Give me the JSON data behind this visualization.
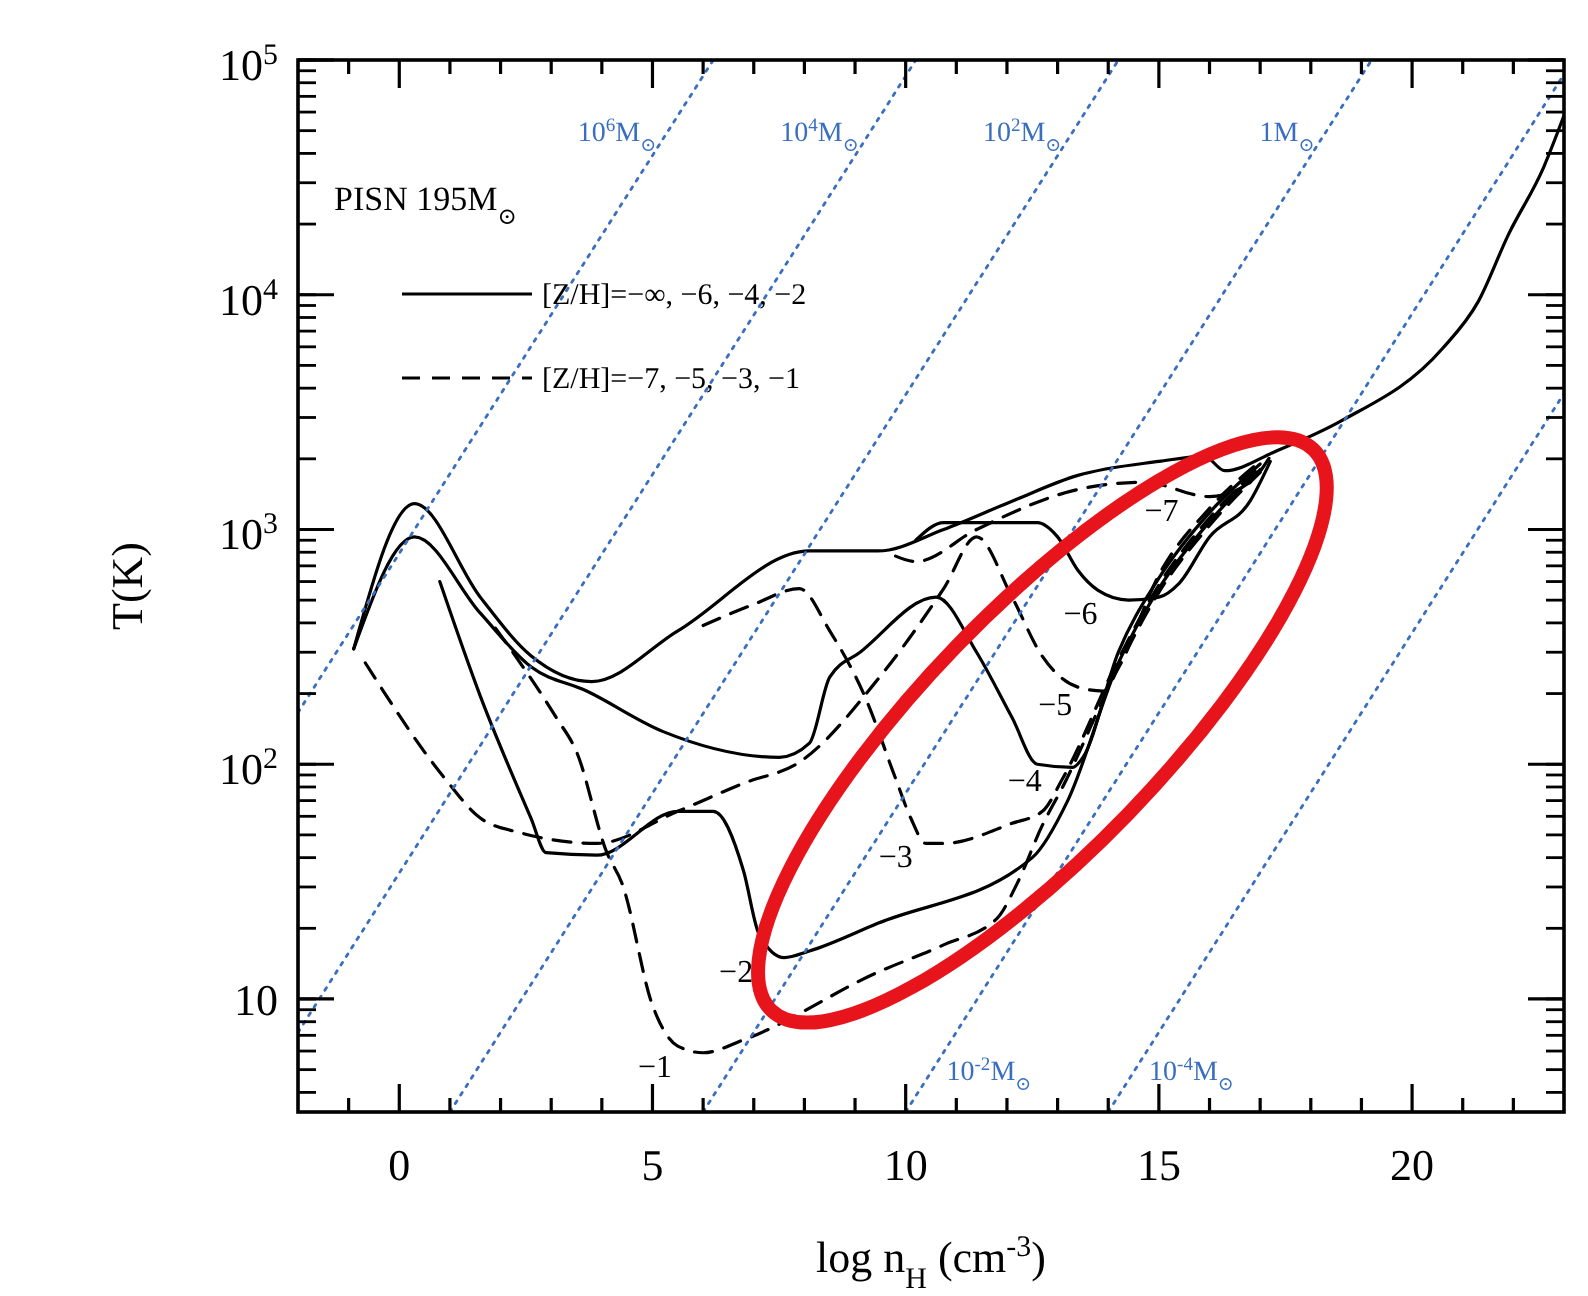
{
  "chart_data": {
    "type": "line",
    "xlabel": "log n$_{H}$ (cm$^{-3}$)",
    "ylabel": "T(K)",
    "log": "y",
    "legend": "top left",
    "legend_title": "PISN 195M$_{⊙}$",
    "xlim": [
      -2,
      23
    ],
    "ylim": [
      3.3,
      100000
    ],
    "xticks": [
      {
        "value": -1,
        "label": null
      },
      0,
      {
        "value": 1,
        "label": null
      },
      {
        "value": 2,
        "label": null
      },
      {
        "value": 3,
        "label": null
      },
      {
        "value": 4,
        "label": null
      },
      5,
      {
        "value": 6,
        "label": null
      },
      {
        "value": 7,
        "label": null
      },
      {
        "value": 8,
        "label": null
      },
      {
        "value": 9,
        "label": null
      },
      10,
      {
        "value": 11,
        "label": null
      },
      {
        "value": 12,
        "label": null
      },
      {
        "value": 13,
        "label": null
      },
      {
        "value": 14,
        "label": null
      },
      15,
      {
        "value": 16,
        "label": null
      },
      {
        "value": 17,
        "label": null
      },
      {
        "value": 18,
        "label": null
      },
      {
        "value": 19,
        "label": null
      },
      20,
      {
        "value": 21,
        "label": null
      },
      {
        "value": 22,
        "label": null
      }
    ],
    "yticks": [
      10,
      {
        "value": 100,
        "label": "10$^{2}$"
      },
      {
        "value": 1000,
        "label": "10$^{3}$"
      },
      {
        "value": 10000,
        "label": "10$^{4}$"
      },
      {
        "value": 100000,
        "label": "10$^{5}$"
      }
    ],
    "series": [
      {
        "name": "[Z/H]=−∞, −6, −4, −2",
        "color": "#000000",
        "line_style": "solid",
        "x": [
          -0.9,
          0.3,
          1.6,
          2.6,
          3.8,
          5.5,
          8.1,
          9.45,
          10.75,
          12.1,
          13.4,
          15.0,
          15.9,
          16.3,
          17.3,
          18.6,
          20.6,
          21.3,
          21.9,
          22.6,
          23
        ],
        "values": [
          310,
          1290,
          515,
          290,
          225,
          370,
          810,
          810,
          1000,
          1320,
          1700,
          1950,
          2050,
          1780,
          2150,
          2900,
          5900,
          9300,
          18000,
          35000,
          58000
        ]
      },
      {
        "name": "[Z/H]=−7, −5, −3, −1",
        "color": "#000000",
        "line_style": "dashed",
        "x": [
          9.8,
          10.2,
          11.4,
          13.4,
          14.7,
          16.0,
          16.8,
          17.2
        ],
        "values": [
          770,
          730,
          1000,
          1480,
          1590,
          1380,
          1590,
          2050
        ]
      },
      {
        "color": "#000000",
        "line_style": "solid",
        "x": [
          10.2,
          10.75,
          12.6,
          13.0,
          13.4,
          13.8,
          14.4,
          15.0,
          15.4,
          16.0,
          16.8,
          17.2
        ],
        "values": [
          900,
          1070,
          1070,
          930,
          670,
          550,
          500,
          515,
          590,
          930,
          1320,
          1950
        ]
      },
      {
        "color": "#000000",
        "line_style": "dashed",
        "x": [
          -0.67,
          0.9,
          1.6,
          2.4,
          3.9,
          5.5,
          6.8,
          7.9,
          9.45,
          10.75,
          11.4,
          12.1,
          12.7,
          13.4,
          13.9,
          14.2,
          15.0,
          16.0,
          17.0
        ],
        "values": [
          270,
          87,
          59,
          51,
          46,
          63,
          83,
          102,
          230,
          560,
          930,
          515,
          288,
          213,
          205,
          257,
          640,
          1230,
          1950
        ]
      },
      {
        "color": "#000000",
        "line_style": "solid",
        "x": [
          -0.9,
          0.3,
          1.6,
          2.6,
          3.7,
          5.2,
          7.5,
          8.1,
          8.5,
          9.1,
          10.6,
          11.4,
          12.1,
          12.6,
          13.3,
          13.5,
          14.2,
          15.0,
          16.0,
          17.0
        ],
        "values": [
          310,
          930,
          440,
          260,
          205,
          138,
          107,
          123,
          235,
          300,
          515,
          300,
          158,
          100,
          97,
          107,
          300,
          620,
          1180,
          1900
        ]
      },
      {
        "color": "#000000",
        "line_style": "dashed",
        "x": [
          6.0,
          7.0,
          7.9,
          8.5,
          9.2,
          9.8,
          10.1,
          10.4,
          10.75,
          12.1,
          12.7,
          13.1,
          14.2,
          15.0,
          16.0,
          17.0
        ],
        "values": [
          390,
          480,
          560,
          370,
          193,
          87,
          59,
          46,
          46,
          56,
          63,
          87,
          280,
          580,
          1120,
          1850
        ]
      },
      {
        "color": "#000000",
        "line_style": "solid",
        "x": [
          0.8,
          1.6,
          2.6,
          2.9,
          3.9,
          5.5,
          6.2,
          6.8,
          7.1,
          7.6,
          8.1,
          9.45,
          12.5,
          13.2,
          14.2,
          15.0,
          16.0,
          17.0
        ],
        "values": [
          600,
          195,
          59,
          42,
          41,
          63,
          63,
          35,
          19,
          15,
          16,
          21,
          40,
          70,
          270,
          560,
          1080,
          1800
        ]
      },
      {
        "color": "#000000",
        "line_style": "dashed",
        "x": [
          1.9,
          3.1,
          3.5,
          4.1,
          4.4,
          5.0,
          5.5,
          6.0,
          6.8,
          9.45,
          10.75,
          11.8,
          12.2,
          12.7,
          13.1,
          14.2,
          15.0,
          16.0,
          17.0
        ],
        "values": [
          380,
          158,
          113,
          42,
          31,
          9.4,
          6.3,
          5.9,
          6.7,
          13,
          17,
          22,
          31,
          55,
          80,
          260,
          540,
          1040,
          1750
        ]
      },
      {
        "color": "#3a6fc0",
        "line_style": "dotted",
        "x": [
          -2,
          6.2
        ],
        "values": [
          166,
          100000
        ]
      },
      {
        "color": "#3a6fc0",
        "line_style": "dotted",
        "x": [
          -2,
          10.2
        ],
        "values": [
          7.2,
          100000
        ]
      },
      {
        "color": "#3a6fc0",
        "line_style": "dotted",
        "x": [
          1,
          14.2
        ],
        "values": [
          3.3,
          100000
        ]
      },
      {
        "color": "#3a6fc0",
        "line_style": "dotted",
        "x": [
          6,
          19.2
        ],
        "values": [
          3.3,
          100000
        ]
      },
      {
        "color": "#3a6fc0",
        "line_style": "dotted",
        "x": [
          10,
          23
        ],
        "values": [
          3.3,
          87000
        ]
      },
      {
        "color": "#3a6fc0",
        "line_style": "dotted",
        "x": [
          14,
          23
        ],
        "values": [
          3.3,
          3800
        ]
      }
    ],
    "annotations": [
      {
        "text": "10$^{6}$M$_{⊙}$",
        "x": 5.31,
        "y": 50000
      },
      {
        "text": "10$^{4}$M$_{⊙}$",
        "x": 9.31,
        "y": 50000
      },
      {
        "text": "10$^{2}$M$_{⊙}$",
        "x": 13.31,
        "y": 50000
      },
      {
        "text": "1M$_{⊙}$",
        "x": 18.31,
        "y": 50000
      },
      {
        "text": "10$^{-2}$M$_{⊙}$",
        "x": 10.53,
        "y": 5
      },
      {
        "text": "10$^{-4}$M$_{⊙}$",
        "x": 14.53,
        "y": 5
      },
      {
        "text": "−7",
        "x": 16.0,
        "y": 1380
      },
      {
        "text": "−6",
        "x": 14.4,
        "y": 500
      },
      {
        "text": "−5",
        "x": 13.9,
        "y": 205
      },
      {
        "text": "−4",
        "x": 13.3,
        "y": 97
      },
      {
        "text": "−3",
        "x": 10.75,
        "y": 46
      },
      {
        "text": "−2",
        "x": 7.6,
        "y": 15
      },
      {
        "text": "−1",
        "x": 6.0,
        "y": 5.9
      }
    ]
  }
}
